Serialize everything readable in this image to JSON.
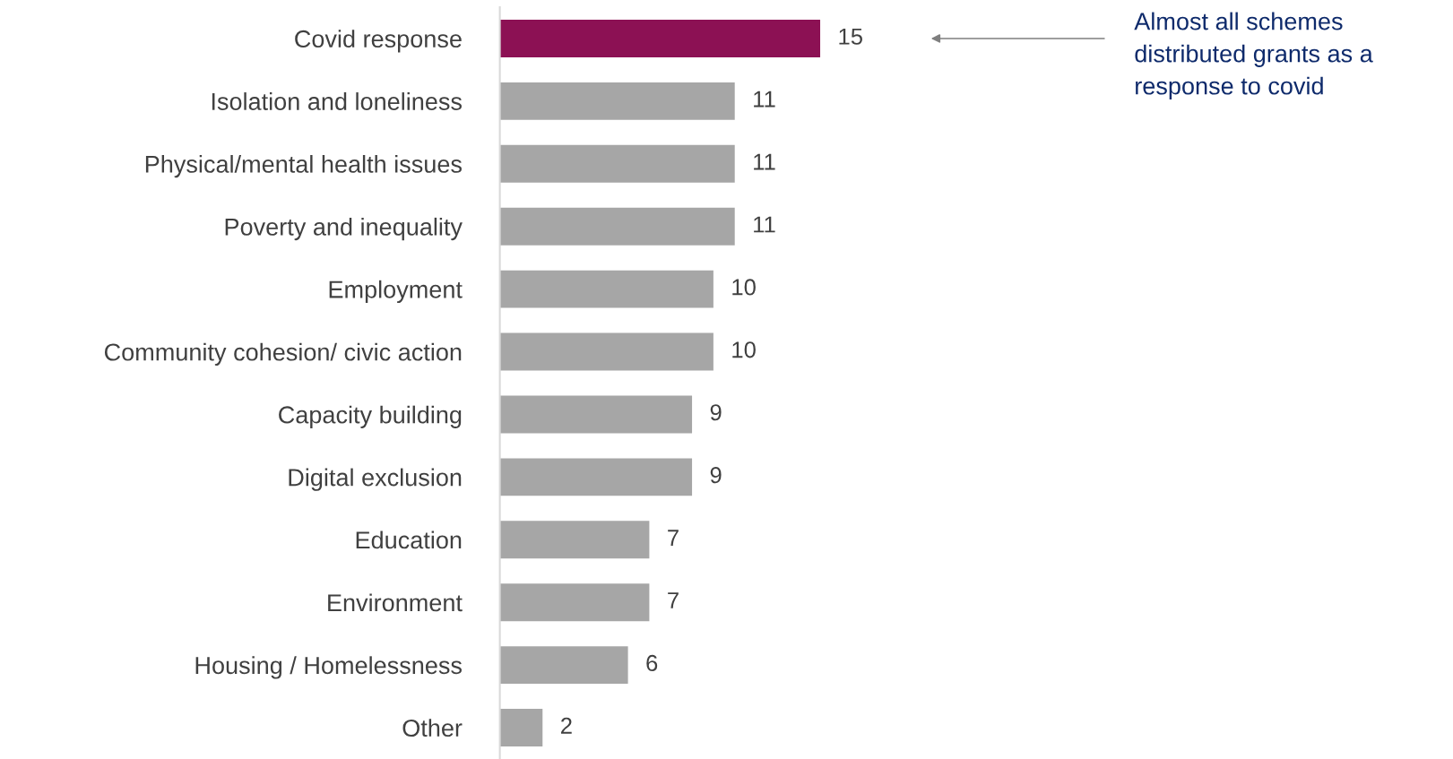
{
  "chart_data": {
    "type": "bar",
    "orientation": "horizontal",
    "categories": [
      "Covid response",
      "Isolation and loneliness",
      "Physical/mental health issues",
      "Poverty and inequality",
      "Employment",
      "Community cohesion/ civic action",
      "Capacity building",
      "Digital exclusion",
      "Education",
      "Environment",
      "Housing / Homelessness",
      "Other"
    ],
    "values": [
      15,
      11,
      11,
      11,
      10,
      10,
      9,
      9,
      7,
      7,
      6,
      2
    ],
    "colors": [
      "#8c1154",
      "#a6a6a6",
      "#a6a6a6",
      "#a6a6a6",
      "#a6a6a6",
      "#a6a6a6",
      "#a6a6a6",
      "#a6a6a6",
      "#a6a6a6",
      "#a6a6a6",
      "#a6a6a6",
      "#a6a6a6"
    ],
    "tick_labels": "y",
    "data_labels": true,
    "grid": false,
    "annotations": [
      "Almost all schemes\ndistributed grants as a\nresponse to covid"
    ]
  }
}
